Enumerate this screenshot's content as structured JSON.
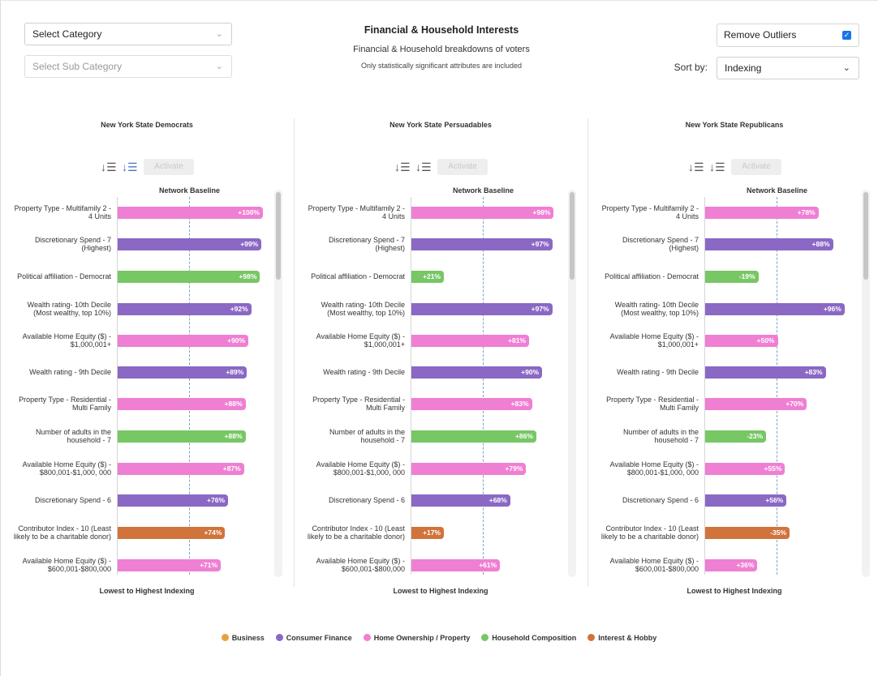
{
  "header": {
    "category_placeholder": "Select Category",
    "subcategory_placeholder": "Select Sub Category",
    "title": "Financial & Household Interests",
    "subtitle": "Financial & Household breakdowns of voters",
    "note": "Only statistically significant attributes are included",
    "remove_outliers_label": "Remove Outliers",
    "remove_outliers_checked": true,
    "sort_by_label": "Sort by:",
    "sort_by_value": "Indexing"
  },
  "panel_common": {
    "activate_label": "Activate",
    "baseline_label": "Network Baseline",
    "footer": "Lowest to Highest Indexing"
  },
  "chart_data": [
    {
      "type": "bar",
      "title": "New York State Democrats",
      "categories": [
        "Property Type - Multifamily 2 - 4 Units",
        "Discretionary Spend - 7 (Highest)",
        "Political affiliation - Democrat",
        "Wealth rating- 10th Decile (Most wealthy, top 10%)",
        "Available Home Equity ($) - $1,000,001+",
        "Wealth rating - 9th Decile",
        "Property Type - Residential - Multi Family",
        "Number of adults in the household - 7",
        "Available Home Equity ($) - $800,001-$1,000, 000",
        "Discretionary Spend - 6",
        "Contributor Index - 10 (Least likely to be a charitable donor)",
        "Available Home Equity ($) - $600,001-$800,000"
      ],
      "values": [
        100,
        99,
        98,
        92,
        90,
        89,
        88,
        88,
        87,
        76,
        74,
        71
      ],
      "labels": [
        "+100%",
        "+99%",
        "+98%",
        "+92%",
        "+90%",
        "+89%",
        "+88%",
        "+88%",
        "+87%",
        "+76%",
        "+74%",
        "+71%"
      ],
      "groups": [
        "Home Ownership / Property",
        "Consumer Finance",
        "Household Composition",
        "Consumer Finance",
        "Home Ownership / Property",
        "Consumer Finance",
        "Home Ownership / Property",
        "Household Composition",
        "Home Ownership / Property",
        "Consumer Finance",
        "Interest & Hobby",
        "Home Ownership / Property"
      ]
    },
    {
      "type": "bar",
      "title": "New York State Persuadables",
      "categories": [
        "Property Type - Multifamily 2 - 4 Units",
        "Discretionary Spend - 7 (Highest)",
        "Political affiliation - Democrat",
        "Wealth rating- 10th Decile (Most wealthy, top 10%)",
        "Available Home Equity ($) - $1,000,001+",
        "Wealth rating - 9th Decile",
        "Property Type - Residential - Multi Family",
        "Number of adults in the household - 7",
        "Available Home Equity ($) - $800,001-$1,000, 000",
        "Discretionary Spend - 6",
        "Contributor Index - 10 (Least likely to be a charitable donor)",
        "Available Home Equity ($) - $600,001-$800,000"
      ],
      "values": [
        98,
        97,
        21,
        97,
        81,
        90,
        83,
        86,
        79,
        68,
        17,
        61
      ],
      "labels": [
        "+98%",
        "+97%",
        "+21%",
        "+97%",
        "+81%",
        "+90%",
        "+83%",
        "+86%",
        "+79%",
        "+68%",
        "+17%",
        "+61%"
      ],
      "groups": [
        "Home Ownership / Property",
        "Consumer Finance",
        "Household Composition",
        "Consumer Finance",
        "Home Ownership / Property",
        "Consumer Finance",
        "Home Ownership / Property",
        "Household Composition",
        "Home Ownership / Property",
        "Consumer Finance",
        "Interest & Hobby",
        "Home Ownership / Property"
      ]
    },
    {
      "type": "bar",
      "title": "New York State Republicans",
      "categories": [
        "Property Type - Multifamily 2 - 4 Units",
        "Discretionary Spend - 7 (Highest)",
        "Political affiliation - Democrat",
        "Wealth rating- 10th Decile (Most wealthy, top 10%)",
        "Available Home Equity ($) - $1,000,001+",
        "Wealth rating - 9th Decile",
        "Property Type - Residential - Multi Family",
        "Number of adults in the household - 7",
        "Available Home Equity ($) - $800,001-$1,000, 000",
        "Discretionary Spend - 6",
        "Contributor Index - 10 (Least likely to be a charitable donor)",
        "Available Home Equity ($) - $600,001-$800,000"
      ],
      "values": [
        78,
        88,
        -19,
        96,
        50,
        83,
        70,
        -23,
        55,
        56,
        -35,
        36
      ],
      "labels": [
        "+78%",
        "+88%",
        "-19%",
        "+96%",
        "+50%",
        "+83%",
        "+70%",
        "-23%",
        "+55%",
        "+56%",
        "-35%",
        "+36%"
      ],
      "groups": [
        "Home Ownership / Property",
        "Consumer Finance",
        "Household Composition",
        "Consumer Finance",
        "Home Ownership / Property",
        "Consumer Finance",
        "Home Ownership / Property",
        "Household Composition",
        "Home Ownership / Property",
        "Consumer Finance",
        "Interest & Hobby",
        "Home Ownership / Property"
      ]
    }
  ],
  "legend": [
    {
      "label": "Business",
      "color": "#e8a13a"
    },
    {
      "label": "Consumer Finance",
      "color": "#8a68c4"
    },
    {
      "label": "Home Ownership / Property",
      "color": "#ef7fd3"
    },
    {
      "label": "Household Composition",
      "color": "#77c765"
    },
    {
      "label": "Interest & Hobby",
      "color": "#d0743c"
    }
  ],
  "icons": {
    "chevron": "⌄",
    "sort_desc": "↓☰",
    "sort_asc": "↓☰",
    "check": "✓"
  }
}
